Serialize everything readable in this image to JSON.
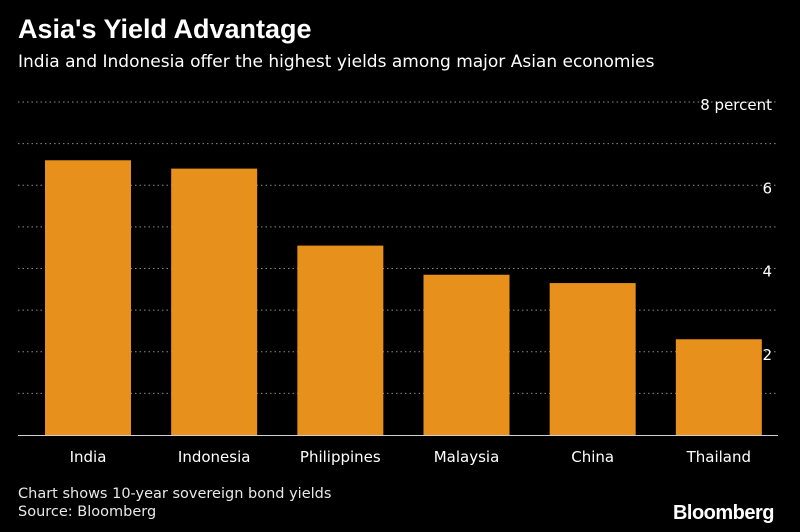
{
  "header": {
    "title": "Asia's Yield Advantage",
    "subtitle": "India and Indonesia offer the highest yields among major Asian economies"
  },
  "footer": {
    "note": "Chart shows 10-year sovereign bond yields",
    "source": "Source: Bloomberg",
    "brand": "Bloomberg"
  },
  "colors": {
    "bar": "#E8901C",
    "grid": "#8a8a8a",
    "axis": "#cfcfcf",
    "background": "#000000"
  },
  "chart_data": {
    "type": "bar",
    "title": "Asia's Yield Advantage",
    "subtitle": "India and Indonesia offer the highest yields among major Asian economies",
    "categories": [
      "India",
      "Indonesia",
      "Philippines",
      "Malaysia",
      "China",
      "Thailand"
    ],
    "values": [
      6.6,
      6.4,
      4.55,
      3.85,
      3.65,
      2.3
    ],
    "ylim": [
      0,
      8
    ],
    "yticks": [
      2,
      4,
      6,
      8
    ],
    "ytick_labels": [
      "2",
      "4",
      "6",
      "8 percent"
    ],
    "grid_step": 1,
    "grid": true,
    "y_axis_side": "right",
    "legend": "none"
  }
}
